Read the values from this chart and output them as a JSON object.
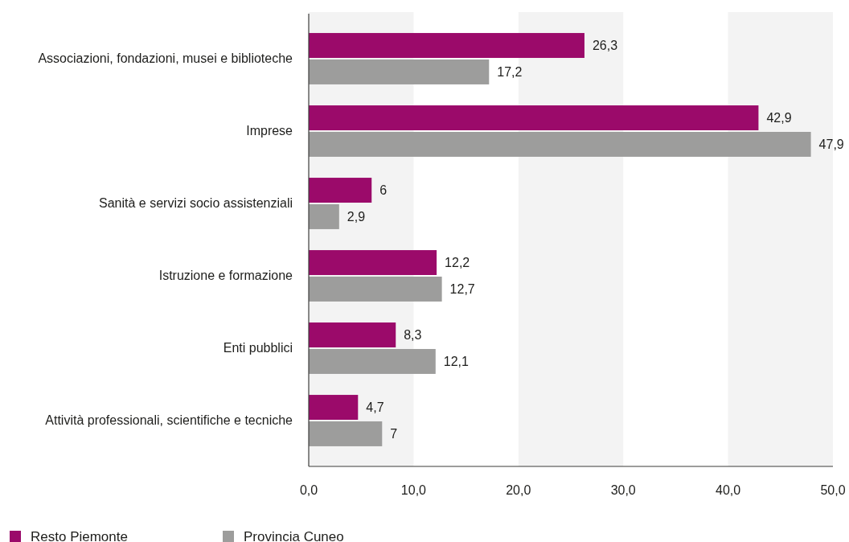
{
  "chart_data": {
    "type": "bar",
    "orientation": "horizontal",
    "categories": [
      "Associazioni, fondazioni, musei e biblioteche",
      "Imprese",
      "Sanità e servizi socio assistenziali",
      "Istruzione e formazione",
      "Enti pubblici",
      "Attività professionali, scientifiche e tecniche"
    ],
    "series": [
      {
        "name": "Resto Piemonte",
        "color": "#9b0a6a",
        "values": [
          26.3,
          42.9,
          6,
          12.2,
          8.3,
          4.7
        ],
        "value_labels": [
          "26,3",
          "42,9",
          "6",
          "12,2",
          "8,3",
          "4,7"
        ]
      },
      {
        "name": "Provincia Cuneo",
        "color": "#9d9d9c",
        "values": [
          17.2,
          47.9,
          2.9,
          12.7,
          12.1,
          7
        ],
        "value_labels": [
          "17,2",
          "47,9",
          "2,9",
          "12,7",
          "12,1",
          "7"
        ]
      }
    ],
    "xlim": [
      0,
      50
    ],
    "xticks": [
      {
        "value": 0,
        "label": "0,0"
      },
      {
        "value": 10,
        "label": "10,0"
      },
      {
        "value": 20,
        "label": "20,0"
      },
      {
        "value": 30,
        "label": "30,0"
      },
      {
        "value": 40,
        "label": "40,0"
      },
      {
        "value": 50,
        "label": "50,0"
      }
    ],
    "bands": [
      {
        "axis": "x",
        "from": 0,
        "to": 10,
        "color": "#f3f3f3"
      },
      {
        "axis": "x",
        "from": 20,
        "to": 30,
        "color": "#f3f3f3"
      },
      {
        "axis": "x",
        "from": 40,
        "to": 50,
        "color": "#f3f3f3"
      }
    ],
    "legend": "bottom left"
  }
}
